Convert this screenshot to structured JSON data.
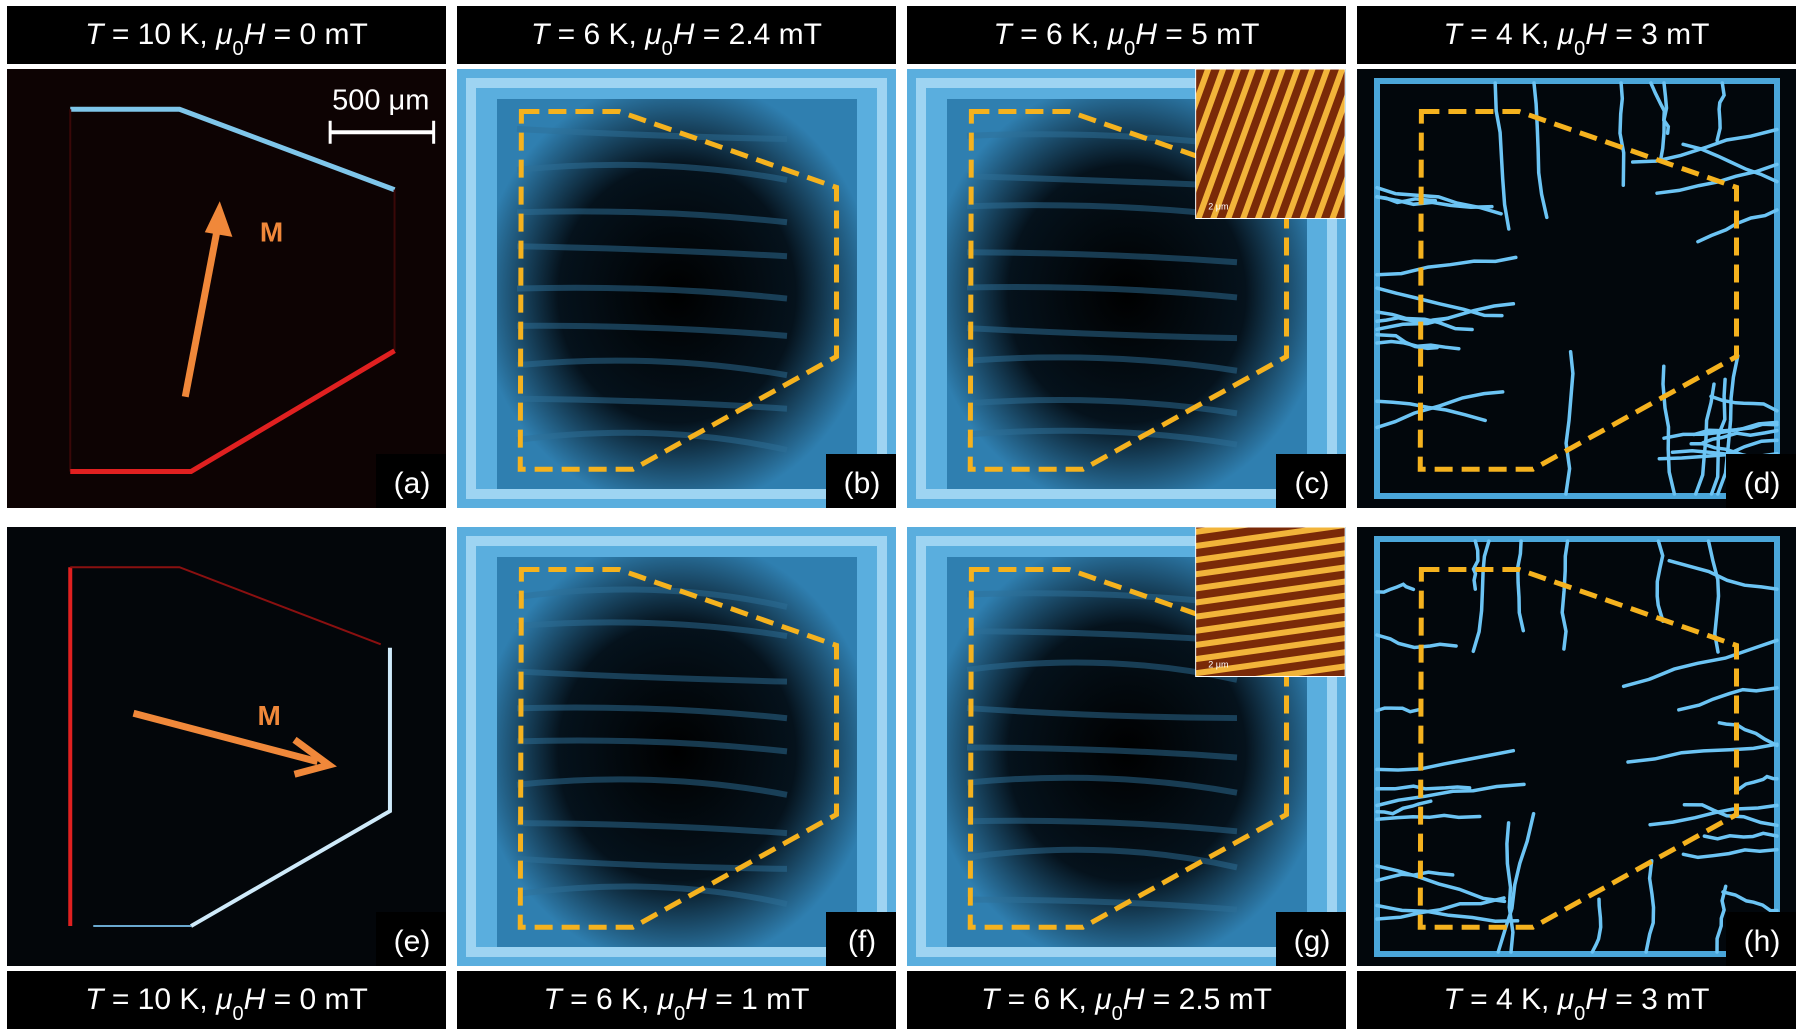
{
  "headers_top": [
    [
      "T",
      " = 10 K, ",
      "μ",
      "0",
      "H",
      " = 0 mT"
    ],
    [
      "T",
      " = 6 K, ",
      "μ",
      "0",
      "H",
      " = 2.4 mT"
    ],
    [
      "T",
      " = 6 K, ",
      "μ",
      "0",
      "H",
      " = 5 mT"
    ],
    [
      "T",
      " = 4 K, ",
      "μ",
      "0",
      "H",
      " = 3 mT"
    ]
  ],
  "headers_bottom": [
    [
      "T",
      " = 10 K, ",
      "μ",
      "0",
      "H",
      " = 0 mT"
    ],
    [
      "T",
      " = 6 K, ",
      "μ",
      "0",
      "H",
      " = 1 mT"
    ],
    [
      "T",
      " = 6 K, ",
      "μ",
      "0",
      "H",
      " = 2.5 mT"
    ],
    [
      "T",
      " = 4 K, ",
      "μ",
      "0",
      "H",
      " = 3 mT"
    ]
  ],
  "panels": [
    {
      "label": "(a)"
    },
    {
      "label": "(b)"
    },
    {
      "label": "(c)"
    },
    {
      "label": "(d)"
    },
    {
      "label": "(e)"
    },
    {
      "label": "(f)"
    },
    {
      "label": "(g)"
    },
    {
      "label": "(h)"
    }
  ],
  "scale_bar": "500 μm",
  "arrow_labels": [
    "M",
    "M"
  ],
  "inset_scale": [
    "2 μm",
    "2 μm"
  ]
}
